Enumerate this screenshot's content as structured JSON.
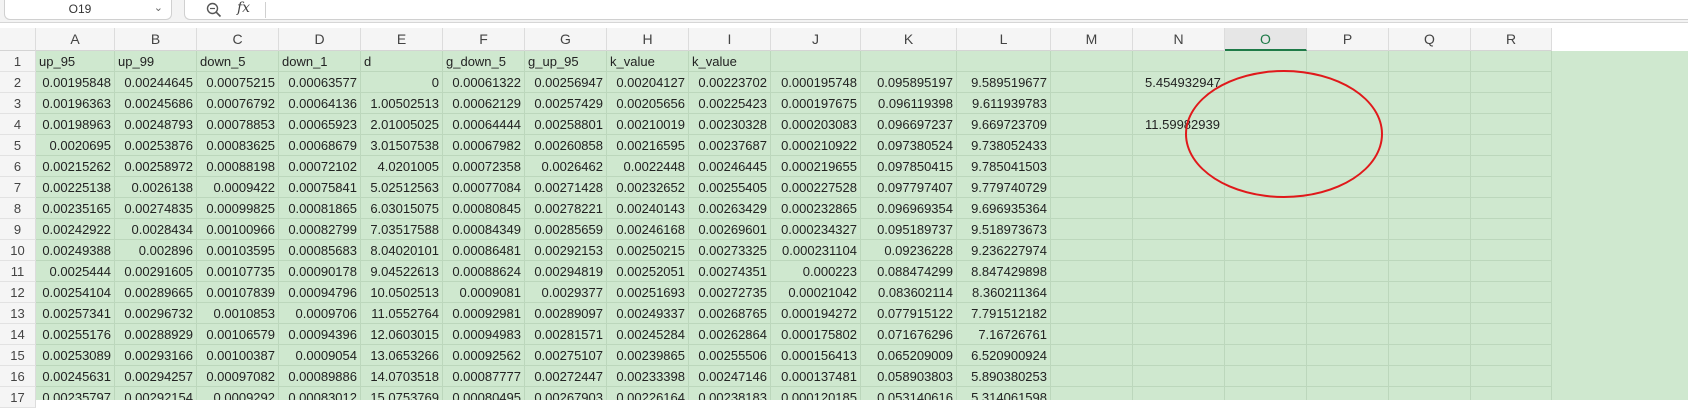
{
  "namebox": {
    "value": "O19",
    "chevron": "chevron-down-icon"
  },
  "formula_bar": {
    "fx_label": "fx",
    "content": "",
    "zoom_icon": "zoom-icon"
  },
  "columns": [
    "A",
    "B",
    "C",
    "D",
    "E",
    "F",
    "G",
    "H",
    "I",
    "J",
    "K",
    "L",
    "M",
    "N",
    "O",
    "P",
    "Q",
    "R"
  ],
  "selected_column": "O",
  "row_numbers": [
    "1",
    "2",
    "3",
    "4",
    "5",
    "6",
    "7",
    "8",
    "9",
    "10",
    "11",
    "12",
    "13",
    "14",
    "15",
    "16",
    "17"
  ],
  "rows": [
    [
      "up_95",
      "up_99",
      "down_5",
      "down_1",
      "d",
      "g_down_5",
      "g_up_95",
      "k_value",
      "k_value",
      "",
      "",
      "",
      "",
      "",
      "",
      "",
      "",
      ""
    ],
    [
      "0.00195848",
      "0.00244645",
      "0.00075215",
      "0.00063577",
      "0",
      "0.00061322",
      "0.00256947",
      "0.00204127",
      "0.00223702",
      "0.000195748",
      "0.095895197",
      "9.589519677",
      "",
      "5.454932947",
      "",
      "",
      "",
      ""
    ],
    [
      "0.00196363",
      "0.00245686",
      "0.00076792",
      "0.00064136",
      "1.00502513",
      "0.00062129",
      "0.00257429",
      "0.00205656",
      "0.00225423",
      "0.000197675",
      "0.096119398",
      "9.611939783",
      "",
      "",
      "",
      "",
      "",
      ""
    ],
    [
      "0.00198963",
      "0.00248793",
      "0.00078853",
      "0.00065923",
      "2.01005025",
      "0.00064444",
      "0.00258801",
      "0.00210019",
      "0.00230328",
      "0.000203083",
      "0.096697237",
      "9.669723709",
      "",
      "11.59982939",
      "",
      "",
      "",
      ""
    ],
    [
      "0.0020695",
      "0.00253876",
      "0.00083625",
      "0.00068679",
      "3.01507538",
      "0.00067982",
      "0.00260858",
      "0.00216595",
      "0.00237687",
      "0.000210922",
      "0.097380524",
      "9.738052433",
      "",
      "",
      "",
      "",
      "",
      ""
    ],
    [
      "0.00215262",
      "0.00258972",
      "0.00088198",
      "0.00072102",
      "4.0201005",
      "0.00072358",
      "0.0026462",
      "0.0022448",
      "0.00246445",
      "0.000219655",
      "0.097850415",
      "9.785041503",
      "",
      "",
      "",
      "",
      "",
      ""
    ],
    [
      "0.00225138",
      "0.0026138",
      "0.0009422",
      "0.00075841",
      "5.02512563",
      "0.00077084",
      "0.00271428",
      "0.00232652",
      "0.00255405",
      "0.000227528",
      "0.097797407",
      "9.779740729",
      "",
      "",
      "",
      "",
      "",
      ""
    ],
    [
      "0.00235165",
      "0.00274835",
      "0.00099825",
      "0.00081865",
      "6.03015075",
      "0.00080845",
      "0.00278221",
      "0.00240143",
      "0.00263429",
      "0.000232865",
      "0.096969354",
      "9.696935364",
      "",
      "",
      "",
      "",
      "",
      ""
    ],
    [
      "0.00242922",
      "0.0028434",
      "0.00100966",
      "0.00082799",
      "7.03517588",
      "0.00084349",
      "0.00285659",
      "0.00246168",
      "0.00269601",
      "0.000234327",
      "0.095189737",
      "9.518973673",
      "",
      "",
      "",
      "",
      "",
      ""
    ],
    [
      "0.00249388",
      "0.002896",
      "0.00103595",
      "0.00085683",
      "8.04020101",
      "0.00086481",
      "0.00292153",
      "0.00250215",
      "0.00273325",
      "0.000231104",
      "0.09236228",
      "9.236227974",
      "",
      "",
      "",
      "",
      "",
      ""
    ],
    [
      "0.0025444",
      "0.00291605",
      "0.00107735",
      "0.00090178",
      "9.04522613",
      "0.00088624",
      "0.00294819",
      "0.00252051",
      "0.00274351",
      "0.000223",
      "0.088474299",
      "8.847429898",
      "",
      "",
      "",
      "",
      "",
      ""
    ],
    [
      "0.00254104",
      "0.00289665",
      "0.00107839",
      "0.00094796",
      "10.0502513",
      "0.0009081",
      "0.0029377",
      "0.00251693",
      "0.00272735",
      "0.00021042",
      "0.083602114",
      "8.360211364",
      "",
      "",
      "",
      "",
      "",
      ""
    ],
    [
      "0.00257341",
      "0.00296732",
      "0.0010853",
      "0.0009706",
      "11.0552764",
      "0.00092981",
      "0.00289097",
      "0.00249337",
      "0.00268765",
      "0.000194272",
      "0.077915122",
      "7.791512182",
      "",
      "",
      "",
      "",
      "",
      ""
    ],
    [
      "0.00255176",
      "0.00288929",
      "0.00106579",
      "0.00094396",
      "12.0603015",
      "0.00094983",
      "0.00281571",
      "0.00245284",
      "0.00262864",
      "0.000175802",
      "0.071676296",
      "7.16726761",
      "",
      "",
      "",
      "",
      "",
      ""
    ],
    [
      "0.00253089",
      "0.00293166",
      "0.00100387",
      "0.0009054",
      "13.0653266",
      "0.00092562",
      "0.00275107",
      "0.00239865",
      "0.00255506",
      "0.000156413",
      "0.065209009",
      "6.520900924",
      "",
      "",
      "",
      "",
      "",
      ""
    ],
    [
      "0.00245631",
      "0.00294257",
      "0.00097082",
      "0.00089886",
      "14.0703518",
      "0.00087777",
      "0.00272447",
      "0.00233398",
      "0.00247146",
      "0.000137481",
      "0.058903803",
      "5.890380253",
      "",
      "",
      "",
      "",
      "",
      ""
    ],
    [
      "0.00235797",
      "0.00292154",
      "0.0009292",
      "0.00083012",
      "15.0753769",
      "0.00080495",
      "0.00267903",
      "0.00226164",
      "0.00238183",
      "0.000120185",
      "0.053140616",
      "5.314061598",
      "",
      "",
      "",
      "",
      "",
      ""
    ]
  ],
  "annotation": {
    "color": "#e0191b"
  }
}
